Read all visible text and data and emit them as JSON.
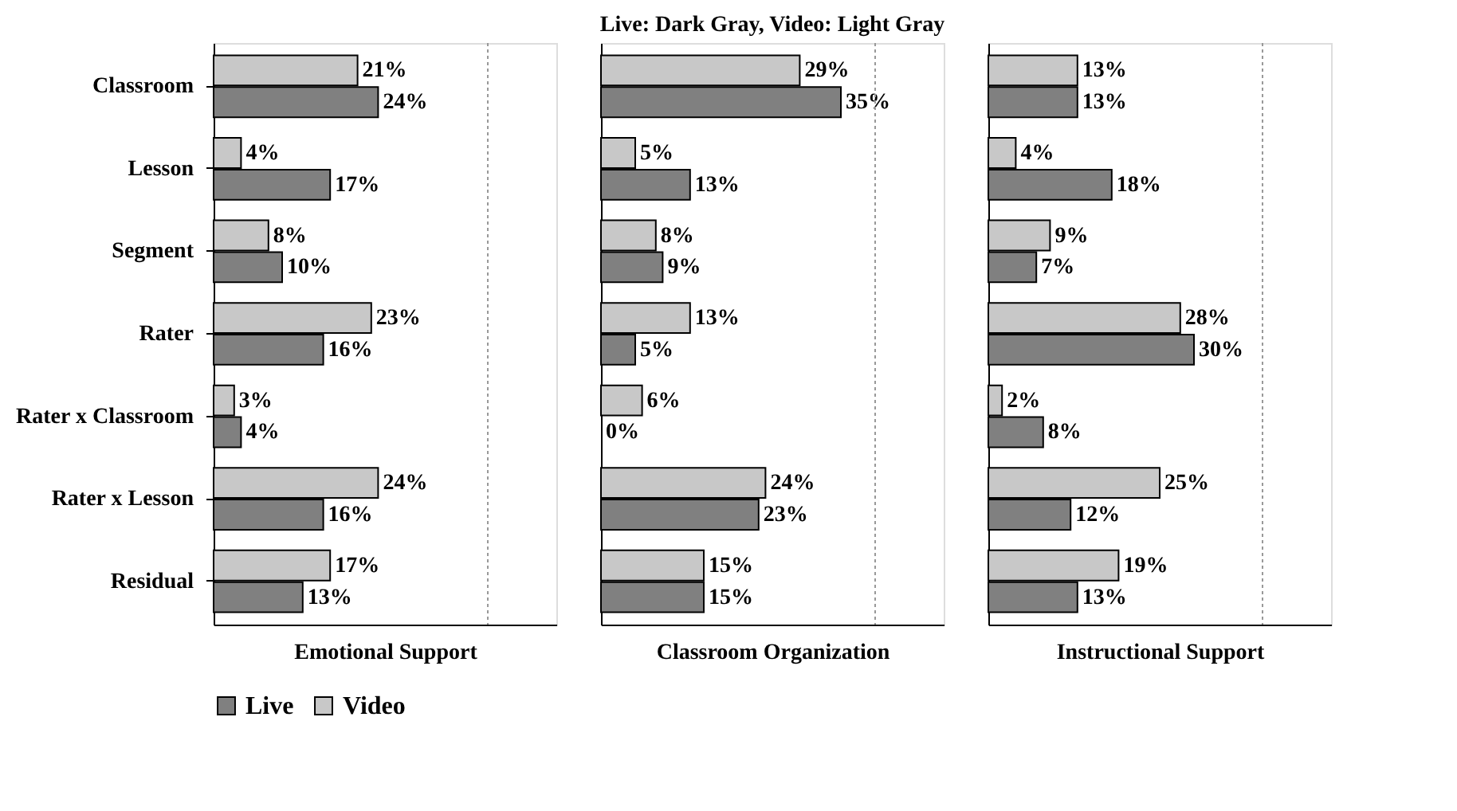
{
  "chart_data": [
    {
      "type": "bar",
      "orientation": "horizontal",
      "xlabel": "Emotional Support",
      "categories": [
        "Classroom",
        "Lesson",
        "Segment",
        "Rater",
        "Rater x Classroom",
        "Rater x Lesson",
        "Residual"
      ],
      "xlim": [
        0,
        50
      ],
      "ref_lines": [
        {
          "axis": "x",
          "value": 40,
          "line_style": "dotted",
          "color": "#999999"
        }
      ],
      "tick_labels": "y",
      "legend": "bottom",
      "series": [
        {
          "name": "Live",
          "color": "#808080",
          "values": [
            24,
            17,
            10,
            16,
            4,
            16,
            13
          ],
          "value_labels": [
            "24%",
            "17%",
            "10%",
            "16%",
            "4%",
            "16%",
            "13%"
          ]
        },
        {
          "name": "Video",
          "color": "#c8c8c8",
          "values": [
            21,
            4,
            8,
            23,
            3,
            24,
            17
          ],
          "value_labels": [
            "21%",
            "4%",
            "8%",
            "23%",
            "3%",
            "24%",
            "17%"
          ]
        }
      ]
    },
    {
      "type": "bar",
      "orientation": "horizontal",
      "title": "Live: Dark Gray, Video: Light Gray",
      "xlabel": "Classroom Organization",
      "categories": [
        "Classroom",
        "Lesson",
        "Segment",
        "Rater",
        "Rater x Classroom",
        "Rater x Lesson",
        "Residual"
      ],
      "xlim": [
        0,
        50
      ],
      "ref_lines": [
        {
          "axis": "x",
          "value": 40,
          "line_style": "dotted",
          "color": "#999999"
        }
      ],
      "tick_labels": false,
      "legend": "bottom",
      "series": [
        {
          "name": "Live",
          "color": "#808080",
          "values": [
            35,
            13,
            9,
            5,
            0,
            23,
            15
          ],
          "value_labels": [
            "35%",
            "13%",
            "9%",
            "5%",
            "0%",
            "23%",
            "15%"
          ]
        },
        {
          "name": "Video",
          "color": "#c8c8c8",
          "values": [
            29,
            5,
            8,
            13,
            6,
            24,
            15
          ],
          "value_labels": [
            "29%",
            "5%",
            "8%",
            "13%",
            "6%",
            "24%",
            "15%"
          ]
        }
      ]
    },
    {
      "type": "bar",
      "orientation": "horizontal",
      "xlabel": "Instructional Support",
      "categories": [
        "Classroom",
        "Lesson",
        "Segment",
        "Rater",
        "Rater x Classroom",
        "Rater x Lesson",
        "Residual"
      ],
      "xlim": [
        0,
        50
      ],
      "ref_lines": [
        {
          "axis": "x",
          "value": 40,
          "line_style": "dotted",
          "color": "#999999"
        }
      ],
      "tick_labels": false,
      "legend": "bottom",
      "series": [
        {
          "name": "Live",
          "color": "#808080",
          "values": [
            13,
            18,
            7,
            30,
            8,
            12,
            13
          ],
          "value_labels": [
            "13%",
            "18%",
            "7%",
            "30%",
            "8%",
            "12%",
            "13%"
          ]
        },
        {
          "name": "Video",
          "color": "#c8c8c8",
          "values": [
            13,
            4,
            9,
            28,
            2,
            25,
            19
          ],
          "value_labels": [
            "13%",
            "4%",
            "9%",
            "28%",
            "2%",
            "25%",
            "19%"
          ]
        }
      ]
    }
  ]
}
